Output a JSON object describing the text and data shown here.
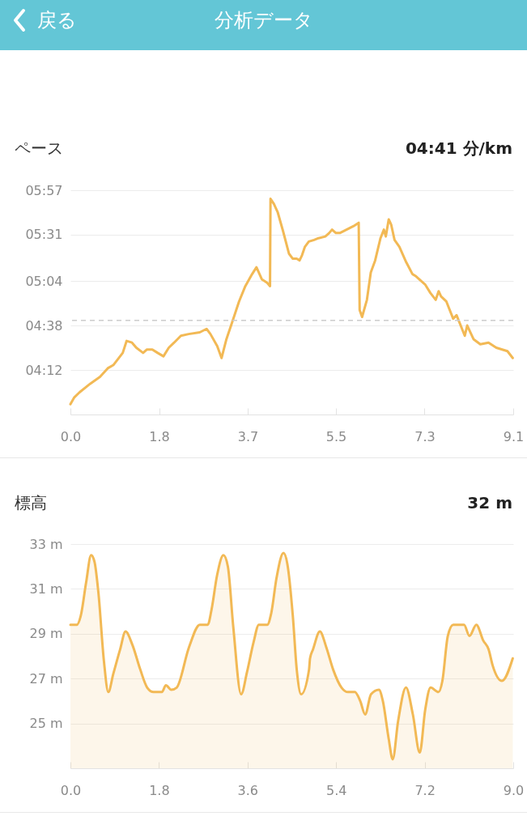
{
  "chart_data": [
    {
      "type": "line",
      "title": "ペース",
      "subtitle": "04:41 分/km",
      "annotations": [
        "戻る",
        "分析データ"
      ],
      "color": "#f2b955",
      "grid": "y",
      "xlim": [
        0,
        9.14
      ],
      "xticks": [
        {
          "value": 0,
          "label": "0.0"
        },
        {
          "value": 1.83,
          "label": "1.8"
        },
        {
          "value": 3.66,
          "label": "3.7"
        },
        {
          "value": 5.48,
          "label": "5.5"
        },
        {
          "value": 7.31,
          "label": "7.3"
        },
        {
          "value": 9.14,
          "label": "9.1"
        }
      ],
      "ylim": [
        226,
        357
      ],
      "yticks": [
        {
          "value": 252,
          "label": "04:12"
        },
        {
          "value": 278,
          "label": "04:38"
        },
        {
          "value": 304,
          "label": "05:04"
        },
        {
          "value": 331,
          "label": "05:31"
        },
        {
          "value": 357,
          "label": "05:57"
        }
      ],
      "ref_lines": [
        {
          "axis": "y",
          "value": 281,
          "color": "#cccccc",
          "line_style": "dashed"
        }
      ],
      "x": [
        0,
        0.08,
        0.19,
        0.41,
        0.61,
        0.77,
        0.89,
        1.08,
        1.16,
        1.27,
        1.36,
        1.5,
        1.58,
        1.69,
        1.8,
        1.92,
        2.03,
        2.14,
        2.28,
        2.44,
        2.67,
        2.81,
        2.89,
        3.03,
        3.12,
        3.22,
        3.34,
        3.48,
        3.61,
        3.75,
        3.84,
        3.95,
        4.06,
        4.12,
        4.13,
        4.2,
        4.28,
        4.39,
        4.51,
        4.59,
        4.67,
        4.73,
        4.78,
        4.84,
        4.92,
        5.03,
        5.12,
        5.26,
        5.34,
        5.4,
        5.48,
        5.56,
        5.7,
        5.84,
        5.95,
        5.97,
        6.02,
        6.12,
        6.2,
        6.29,
        6.4,
        6.47,
        6.51,
        6.57,
        6.62,
        6.69,
        6.79,
        6.93,
        7.06,
        7.12,
        7.24,
        7.32,
        7.43,
        7.54,
        7.6,
        7.65,
        7.76,
        7.9,
        7.97,
        8.14,
        8.19,
        8.32,
        8.46,
        8.63,
        8.79,
        9.02,
        9.13
      ],
      "values": [
        232,
        236,
        239,
        244,
        248,
        253,
        255,
        262,
        269,
        268,
        265,
        262,
        264,
        264,
        262,
        260,
        265,
        268,
        272,
        273,
        274,
        276,
        273,
        266,
        259,
        270,
        280,
        292,
        301,
        308,
        312,
        305,
        303,
        301,
        352,
        349,
        344,
        333,
        320,
        317,
        317,
        316,
        319,
        324,
        327,
        328,
        329,
        330,
        332,
        334,
        332,
        332,
        334,
        336,
        338,
        287,
        283,
        293,
        309,
        316,
        329,
        334,
        330,
        340,
        337,
        328,
        324,
        315,
        308,
        307,
        304,
        302,
        297,
        293,
        298,
        295,
        292,
        282,
        284,
        272,
        278,
        270,
        267,
        268,
        265,
        263,
        259
      ]
    },
    {
      "type": "area",
      "title": "標高",
      "subtitle": "32 m",
      "color": "#f2b955",
      "grid": "y",
      "xlim": [
        0,
        9.0
      ],
      "xticks": [
        {
          "value": 0,
          "label": "0.0"
        },
        {
          "value": 1.8,
          "label": "1.8"
        },
        {
          "value": 3.6,
          "label": "3.6"
        },
        {
          "value": 5.4,
          "label": "5.4"
        },
        {
          "value": 7.2,
          "label": "7.2"
        },
        {
          "value": 9.0,
          "label": "9.0"
        }
      ],
      "ylim": [
        23,
        33
      ],
      "yticks": [
        {
          "value": 25,
          "label": "25 m"
        },
        {
          "value": 27,
          "label": "27 m"
        },
        {
          "value": 29,
          "label": "29 m"
        },
        {
          "value": 31,
          "label": "31 m"
        },
        {
          "value": 33,
          "label": "33 m"
        }
      ],
      "x": [
        0,
        0.13,
        0.21,
        0.32,
        0.42,
        0.49,
        0.57,
        0.68,
        0.77,
        0.87,
        1.01,
        1.12,
        1.26,
        1.42,
        1.56,
        1.69,
        1.86,
        1.94,
        2.05,
        2.16,
        2.41,
        2.63,
        2.79,
        2.87,
        2.98,
        3.11,
        3.2,
        3.31,
        3.47,
        3.59,
        3.72,
        3.83,
        4.0,
        4.08,
        4.19,
        4.33,
        4.41,
        4.52,
        4.6,
        4.69,
        4.85,
        4.87,
        4.93,
        5.07,
        5.2,
        5.34,
        5.51,
        5.64,
        5.78,
        5.89,
        5.99,
        6.11,
        6.27,
        6.35,
        6.47,
        6.55,
        6.66,
        6.82,
        6.96,
        7.1,
        7.21,
        7.32,
        7.48,
        7.56,
        7.67,
        7.78,
        8.0,
        8.11,
        8.25,
        8.39,
        8.5,
        8.58,
        8.77,
        8.99
      ],
      "values": [
        29.4,
        29.4,
        29.8,
        31.3,
        32.5,
        32.2,
        30.8,
        27.8,
        26.4,
        27.2,
        28.3,
        29.1,
        28.5,
        27.4,
        26.6,
        26.4,
        26.4,
        26.7,
        26.5,
        26.6,
        28.4,
        29.4,
        29.4,
        30.1,
        31.6,
        32.5,
        32.0,
        29.3,
        26.3,
        27.3,
        28.6,
        29.4,
        29.4,
        29.9,
        31.5,
        32.6,
        32.1,
        29.8,
        27.4,
        26.3,
        27.4,
        27.9,
        28.3,
        29.1,
        28.4,
        27.4,
        26.6,
        26.4,
        26.4,
        26.0,
        25.4,
        26.3,
        26.5,
        26.0,
        24.3,
        23.4,
        25.1,
        26.6,
        25.4,
        23.7,
        25.6,
        26.6,
        26.4,
        26.9,
        28.9,
        29.4,
        29.4,
        28.9,
        29.4,
        28.7,
        28.3,
        27.6,
        26.9,
        27.9
      ]
    }
  ]
}
